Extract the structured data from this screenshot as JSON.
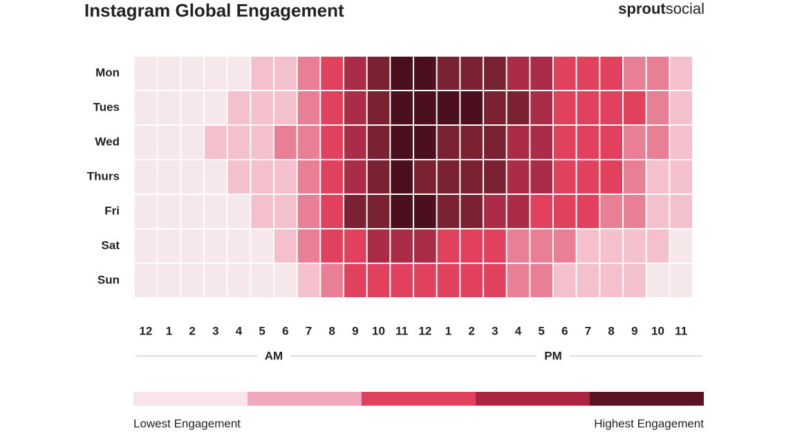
{
  "chart_data": {
    "type": "heatmap",
    "title": "Instagram Global Engagement",
    "brand": [
      "sprout",
      "social"
    ],
    "rows": [
      "Mon",
      "Tues",
      "Wed",
      "Thurs",
      "Fri",
      "Sat",
      "Sun"
    ],
    "categories": [
      "12",
      "1",
      "2",
      "3",
      "4",
      "5",
      "6",
      "7",
      "8",
      "9",
      "10",
      "11",
      "12",
      "1",
      "2",
      "3",
      "4",
      "5",
      "6",
      "7",
      "8",
      "9",
      "10",
      "11"
    ],
    "periods": [
      "AM",
      "PM"
    ],
    "colorscale": [
      "#f6e7eb",
      "#f4c0cc",
      "#e97f94",
      "#e1415d",
      "#ab2c46",
      "#7a2132",
      "#4c0f1d"
    ],
    "values": [
      [
        1,
        1,
        1,
        1,
        1,
        2,
        2,
        3,
        4,
        5,
        6,
        7,
        7,
        6,
        6,
        6,
        5,
        5,
        4,
        4,
        4,
        3,
        3,
        2
      ],
      [
        1,
        1,
        1,
        1,
        2,
        2,
        2,
        3,
        4,
        5,
        6,
        7,
        7,
        7,
        7,
        6,
        6,
        5,
        4,
        4,
        4,
        4,
        3,
        2
      ],
      [
        1,
        1,
        1,
        2,
        2,
        2,
        3,
        3,
        4,
        5,
        6,
        7,
        7,
        6,
        6,
        6,
        5,
        5,
        4,
        4,
        4,
        3,
        3,
        2
      ],
      [
        1,
        1,
        1,
        1,
        2,
        2,
        2,
        3,
        4,
        5,
        6,
        7,
        6,
        6,
        6,
        6,
        5,
        5,
        4,
        4,
        4,
        3,
        2,
        2
      ],
      [
        1,
        1,
        1,
        1,
        1,
        2,
        2,
        3,
        4,
        6,
        6,
        7,
        7,
        6,
        6,
        5,
        5,
        4,
        4,
        4,
        3,
        3,
        2,
        2
      ],
      [
        1,
        1,
        1,
        1,
        1,
        1,
        2,
        3,
        4,
        4,
        5,
        5,
        5,
        4,
        4,
        4,
        3,
        3,
        3,
        2,
        2,
        2,
        2,
        1
      ],
      [
        1,
        1,
        1,
        1,
        1,
        1,
        1,
        2,
        3,
        4,
        4,
        4,
        4,
        4,
        4,
        4,
        3,
        3,
        2,
        2,
        2,
        2,
        1,
        1
      ]
    ],
    "legend_colors": [
      "#f8e4ea",
      "#f0a8bc",
      "#e1415d",
      "#ab2540",
      "#5a1323"
    ],
    "legend_labels": [
      "Lowest Engagement",
      "Highest Engagement"
    ]
  }
}
